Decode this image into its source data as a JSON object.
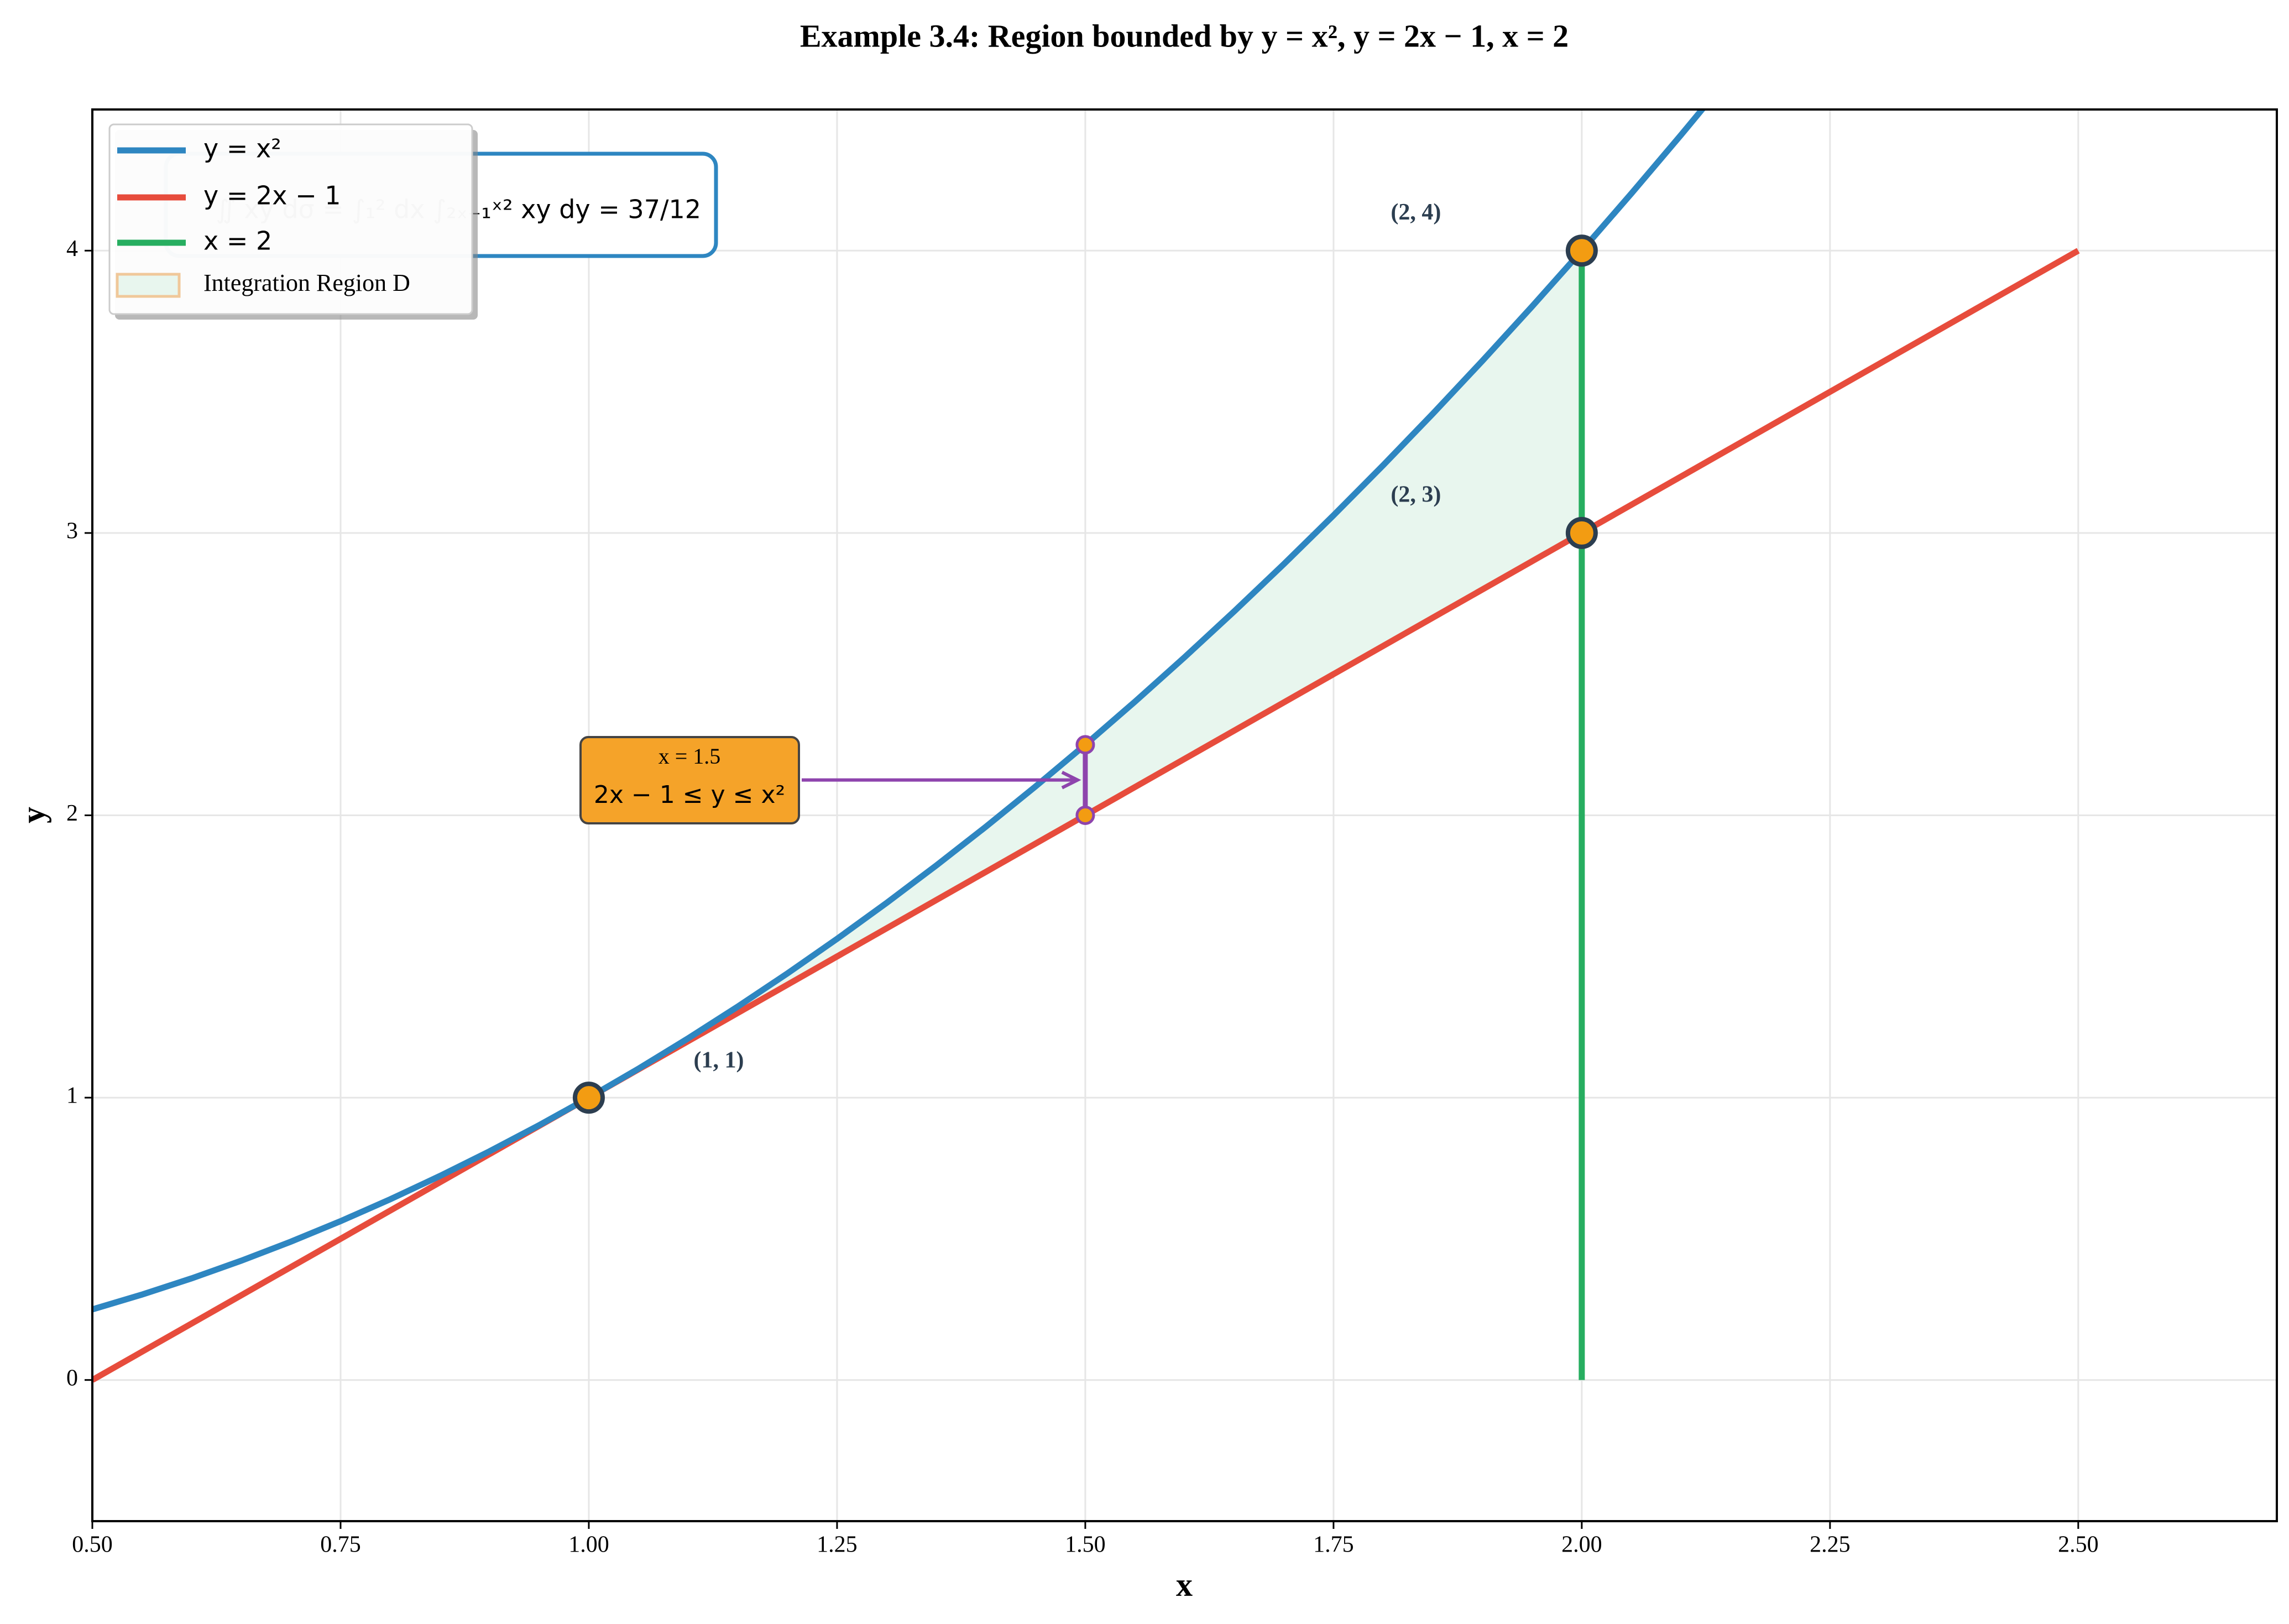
{
  "chart_data": {
    "type": "line",
    "title": "Example 3.4: Region bounded by y = x², y = 2x − 1, x = 2",
    "x_label": "x",
    "y_label": "y",
    "xlim": [
      0.5,
      2.7
    ],
    "ylim": [
      -0.5,
      4.5
    ],
    "xticks": [
      {
        "value": 0.5,
        "label": "0.50"
      },
      {
        "value": 0.75,
        "label": "0.75"
      },
      {
        "value": 1,
        "label": "1.00"
      },
      {
        "value": 1.25,
        "label": "1.25"
      },
      {
        "value": 1.5,
        "label": "1.50"
      },
      {
        "value": 1.75,
        "label": "1.75"
      },
      {
        "value": 2,
        "label": "2.00"
      },
      {
        "value": 2.25,
        "label": "2.25"
      },
      {
        "value": 2.5,
        "label": "2.50"
      }
    ],
    "yticks": [
      0,
      1,
      2,
      3,
      4
    ],
    "grid": true,
    "legend": "upper left",
    "series": [
      {
        "name": "y = x²",
        "color": "#2e86c1",
        "x": [
          0.5,
          0.55,
          0.6,
          0.65,
          0.7,
          0.75,
          0.8,
          0.85,
          0.9,
          0.95,
          1,
          1.05,
          1.1,
          1.15,
          1.2,
          1.25,
          1.3,
          1.35,
          1.4,
          1.45,
          1.5,
          1.55,
          1.6,
          1.65,
          1.7,
          1.75,
          1.8,
          1.85,
          1.9,
          1.95,
          2,
          2.05,
          2.1,
          2.15
        ],
        "values": [
          0.25,
          0.3025,
          0.36,
          0.4225,
          0.49,
          0.5625,
          0.64,
          0.7225,
          0.81,
          0.9025,
          1,
          1.1025,
          1.21,
          1.3225,
          1.44,
          1.5625,
          1.69,
          1.8225,
          1.96,
          2.1025,
          2.25,
          2.4025,
          2.56,
          2.7225,
          2.89,
          3.0625,
          3.24,
          3.4225,
          3.61,
          3.8025,
          4,
          4.2025,
          4.41,
          4.6225
        ]
      },
      {
        "name": "y = 2x − 1",
        "color": "#e74c3c",
        "x": [
          0.5,
          2.5
        ],
        "values": [
          0,
          4
        ]
      },
      {
        "name": "x = 2",
        "color": "#27ae60",
        "x": [
          2,
          2
        ],
        "values": [
          0,
          4
        ]
      }
    ],
    "region": {
      "name": "Integration Region D",
      "color": "#e8f6ee",
      "edgecolor": "#f0c89a",
      "x": [
        1,
        1.1,
        1.2,
        1.3,
        1.4,
        1.5,
        1.6,
        1.7,
        1.8,
        1.9,
        2
      ],
      "upper": [
        1,
        1.21,
        1.44,
        1.69,
        1.96,
        2.25,
        2.56,
        2.89,
        3.24,
        3.61,
        4
      ],
      "lower": [
        1,
        1.2,
        1.4,
        1.6,
        1.8,
        2,
        2.2,
        2.4,
        2.6,
        2.8,
        3
      ]
    },
    "points": {
      "color": "#f39c12",
      "x": [
        1,
        2,
        2
      ],
      "values": [
        1,
        4,
        3
      ],
      "labels": [
        "(1, 1)",
        "(2, 4)",
        "(2, 3)"
      ]
    },
    "slice": {
      "color": "#8e44ad",
      "x": [
        1.5,
        1.5
      ],
      "values": [
        2,
        2.25
      ],
      "lines": [
        "x = 1.5",
        "2x − 1 ≤ y ≤ x²"
      ]
    },
    "integral": "∬ xy dσ = ∫₁² dx ∫₂ₓ₋₁ˣ² xy dy = 37/12"
  }
}
